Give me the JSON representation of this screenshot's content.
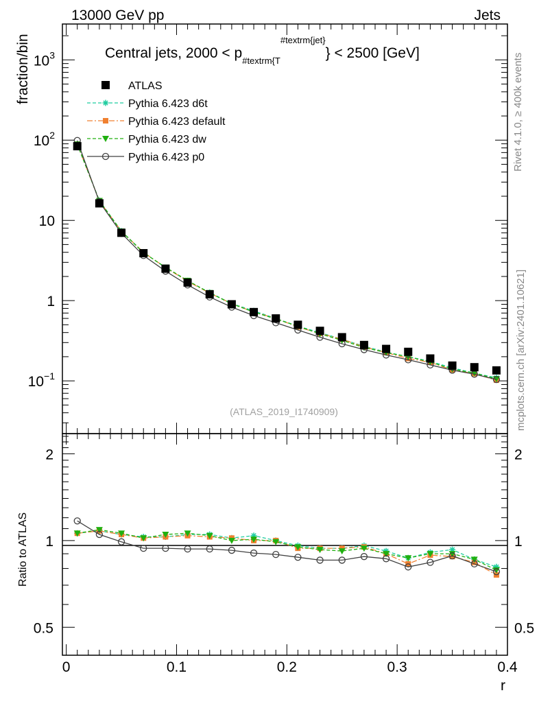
{
  "header": {
    "left": "13000 GeV pp",
    "right": "Jets"
  },
  "side_labels": {
    "rivet": "Rivet 4.1.0, ≥ 400k events",
    "mcplots": "mcplots.cern.ch [arXiv:2401.10621]"
  },
  "chart_data": [
    {
      "type": "scatter",
      "title": "Central jets, 2000 < p",
      "title_sub": "#textrm{T",
      "title_sup": "#textrm{jet}",
      "title_post": "} < 2500 [GeV]",
      "watermark": "(ATLAS_2019_I1740909)",
      "xlabel": "r",
      "ylabel": "fraction/bin",
      "yscale": "log",
      "xlim": [
        -0.0035,
        0.4
      ],
      "ylim": [
        0.022,
        2800
      ],
      "xticks": [
        0,
        0.1,
        0.2,
        0.3,
        0.4
      ],
      "xtick_labels": [
        "0",
        "0.1",
        "0.2",
        "0.3",
        "0.4"
      ],
      "yticks": [
        {
          "value": 0.1,
          "base": "10",
          "exp": "−1"
        },
        {
          "value": 1,
          "base": "1",
          "exp": ""
        },
        {
          "value": 10,
          "base": "10",
          "exp": ""
        },
        {
          "value": 100,
          "base": "10",
          "exp": "2"
        },
        {
          "value": 1000,
          "base": "10",
          "exp": "3"
        }
      ],
      "x": [
        0.01,
        0.03,
        0.05,
        0.07,
        0.09,
        0.11,
        0.13,
        0.15,
        0.17,
        0.19,
        0.21,
        0.23,
        0.25,
        0.27,
        0.29,
        0.31,
        0.33,
        0.35,
        0.37,
        0.39
      ],
      "series": [
        {
          "name": "ATLAS",
          "color": "#000000",
          "marker": "square",
          "line": "none",
          "values": [
            84,
            16.3,
            7.0,
            3.9,
            2.5,
            1.68,
            1.2,
            0.9,
            0.72,
            0.6,
            0.5,
            0.42,
            0.35,
            0.28,
            0.25,
            0.23,
            0.19,
            0.155,
            0.148,
            0.135
          ]
        },
        {
          "name": "Pythia 6.423 d6t",
          "color": "#1fcc9f",
          "marker": "star",
          "line": "dashed",
          "values": [
            89,
            17.6,
            7.35,
            4.0,
            2.57,
            1.76,
            1.26,
            0.92,
            0.745,
            0.6,
            0.48,
            0.4,
            0.33,
            0.27,
            0.228,
            0.2,
            0.175,
            0.145,
            0.125,
            0.109
          ]
        },
        {
          "name": "Pythia 6.423 default",
          "color": "#f08030",
          "marker": "square-small",
          "line": "dashdot",
          "values": [
            89,
            17.5,
            7.3,
            4.0,
            2.58,
            1.74,
            1.24,
            0.92,
            0.72,
            0.6,
            0.47,
            0.39,
            0.33,
            0.265,
            0.225,
            0.19,
            0.17,
            0.137,
            0.123,
            0.102
          ]
        },
        {
          "name": "Pythia 6.423 dw",
          "color": "#20b010",
          "marker": "triangle-down",
          "line": "dashed",
          "values": [
            89,
            17.6,
            7.3,
            3.95,
            2.6,
            1.78,
            1.25,
            0.91,
            0.72,
            0.59,
            0.48,
            0.385,
            0.32,
            0.26,
            0.225,
            0.2,
            0.172,
            0.14,
            0.125,
            0.106
          ]
        },
        {
          "name": "Pythia 6.423 p0",
          "color": "#404040",
          "marker": "circle-open",
          "line": "solid",
          "values": [
            99,
            17,
            6.9,
            3.65,
            2.33,
            1.57,
            1.11,
            0.83,
            0.65,
            0.53,
            0.43,
            0.35,
            0.29,
            0.245,
            0.21,
            0.183,
            0.158,
            0.136,
            0.121,
            0.104
          ]
        }
      ]
    },
    {
      "type": "line",
      "ylabel": "Ratio to ATLAS",
      "xlabel": "r",
      "yscale": "log",
      "ylim": [
        0.4,
        2.35
      ],
      "xlim": [
        -0.0035,
        0.4
      ],
      "yticks": [
        0.5,
        1,
        2
      ],
      "ytick_labels": [
        "0.5",
        "1",
        "2"
      ],
      "reference_line": 1,
      "x": [
        0.01,
        0.03,
        0.05,
        0.07,
        0.09,
        0.11,
        0.13,
        0.15,
        0.17,
        0.19,
        0.21,
        0.23,
        0.25,
        0.27,
        0.29,
        0.31,
        0.33,
        0.35,
        0.37,
        0.39
      ],
      "series": [
        {
          "name": "Pythia 6.423 d6t",
          "color": "#1fcc9f",
          "marker": "star",
          "line": "dashed",
          "values": [
            1.06,
            1.08,
            1.05,
            1.03,
            1.03,
            1.05,
            1.05,
            1.02,
            1.04,
            1.0,
            0.96,
            0.94,
            0.94,
            0.96,
            0.92,
            0.87,
            0.91,
            0.93,
            0.86,
            0.81
          ]
        },
        {
          "name": "Pythia 6.423 default",
          "color": "#f08030",
          "marker": "square-small",
          "line": "dashdot",
          "values": [
            1.06,
            1.08,
            1.05,
            1.02,
            1.03,
            1.04,
            1.03,
            1.02,
            1.0,
            1.0,
            0.94,
            0.94,
            0.94,
            0.95,
            0.9,
            0.83,
            0.89,
            0.88,
            0.84,
            0.76
          ]
        },
        {
          "name": "Pythia 6.423 dw",
          "color": "#20b010",
          "marker": "triangle-down",
          "line": "dashed",
          "values": [
            1.06,
            1.09,
            1.06,
            1.02,
            1.05,
            1.06,
            1.04,
            1.0,
            1.01,
            0.99,
            0.95,
            0.93,
            0.92,
            0.94,
            0.9,
            0.87,
            0.9,
            0.9,
            0.86,
            0.79
          ]
        },
        {
          "name": "Pythia 6.423 p0",
          "color": "#404040",
          "marker": "circle-open",
          "line": "solid",
          "values": [
            1.17,
            1.05,
            0.99,
            0.94,
            0.94,
            0.935,
            0.935,
            0.925,
            0.905,
            0.895,
            0.875,
            0.855,
            0.855,
            0.88,
            0.865,
            0.81,
            0.84,
            0.885,
            0.83,
            0.78
          ]
        }
      ]
    }
  ]
}
